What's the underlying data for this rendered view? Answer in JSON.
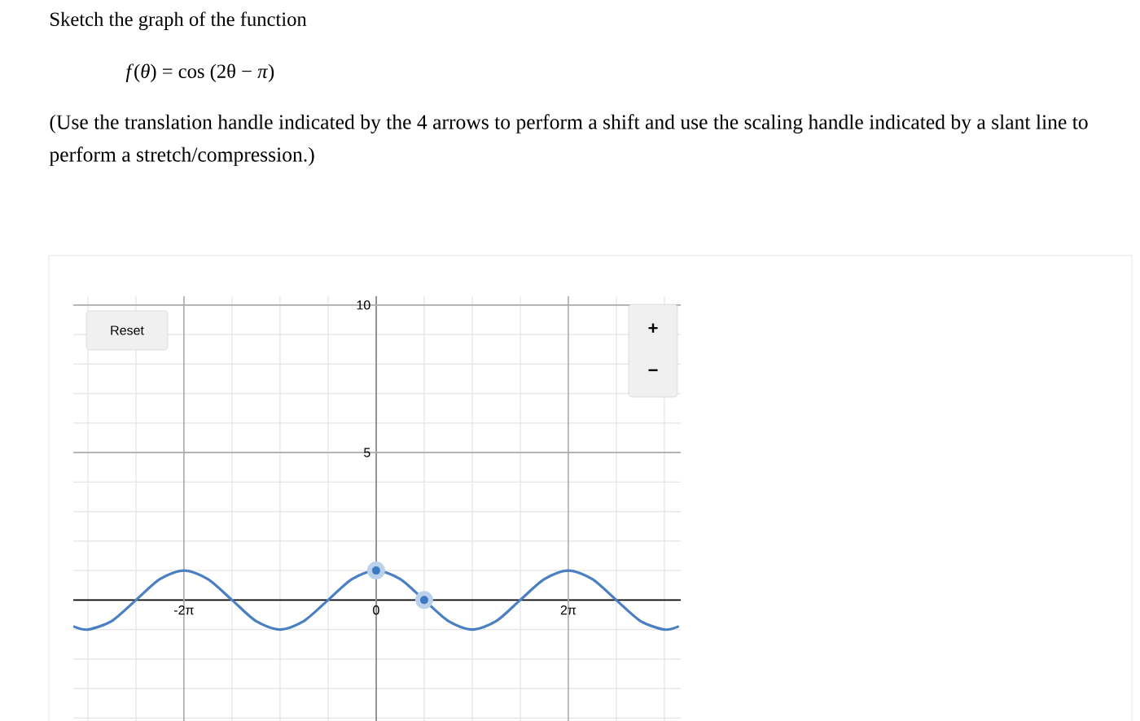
{
  "chart_data": {
    "type": "line",
    "title": "Sketch the graph of the function",
    "subtitle": "*f*(*θ*) = cos (2θ − *π*)",
    "annotations": [
      "(Use the translation handle indicated by the 4 arrows to perform a shift and use the scaling handle indicated by a slant line to perform a stretch/compression.)",
      "Reset",
      "+",
      "−"
    ],
    "series": [
      {
        "color": "#4a7fc1",
        "x": [
          -9.9,
          -9.42,
          -8.64,
          -7.85,
          -7.07,
          -6.28,
          -5.5,
          -4.71,
          -3.93,
          -3.14,
          -2.36,
          -1.57,
          -0.79,
          0,
          0.79,
          1.57,
          2.36,
          3.14,
          3.93,
          4.71,
          5.5,
          6.28,
          7.07,
          7.85,
          8.64,
          9.42,
          9.9
        ],
        "values": [
          -0.89,
          -1,
          -0.71,
          0,
          0.71,
          1,
          0.71,
          0,
          -0.71,
          -1,
          -0.71,
          0,
          0.71,
          1,
          0.71,
          0,
          -0.71,
          -1,
          -0.71,
          0,
          0.71,
          1,
          0.71,
          0,
          -0.71,
          -1,
          -0.89
        ]
      },
      {
        "type": "scatter",
        "color": "#3d78c2",
        "marker": "circle",
        "x": [
          0,
          1.571
        ],
        "values": [
          1,
          0
        ]
      }
    ],
    "xlim": [
      -9.9,
      9.96
    ],
    "ylim": [
      -4.1,
      10.3
    ],
    "xticks": [
      {
        "value": -9.425,
        "label": null
      },
      {
        "value": -7.854,
        "label": null
      },
      {
        "value": -6.283,
        "label": "-2π"
      },
      {
        "value": -4.712,
        "label": null
      },
      {
        "value": -3.142,
        "label": null
      },
      {
        "value": -1.571,
        "label": null
      },
      {
        "value": 0,
        "label": "0"
      },
      {
        "value": 1.571,
        "label": null
      },
      {
        "value": 3.142,
        "label": null
      },
      {
        "value": 4.712,
        "label": null
      },
      {
        "value": 6.283,
        "label": "2π"
      },
      {
        "value": 7.854,
        "label": null
      },
      {
        "value": 9.425,
        "label": null
      }
    ],
    "yticks": [
      {
        "value": -4,
        "label": null
      },
      {
        "value": -3,
        "label": null
      },
      {
        "value": -2,
        "label": null
      },
      {
        "value": -1,
        "label": null
      },
      {
        "value": 1,
        "label": null
      },
      {
        "value": 2,
        "label": null
      },
      {
        "value": 3,
        "label": null
      },
      {
        "value": 4,
        "label": null
      },
      5,
      {
        "value": 6,
        "label": null
      },
      {
        "value": 7,
        "label": null
      },
      {
        "value": 8,
        "label": null
      },
      {
        "value": 9,
        "label": null
      },
      10
    ],
    "grid": true
  }
}
